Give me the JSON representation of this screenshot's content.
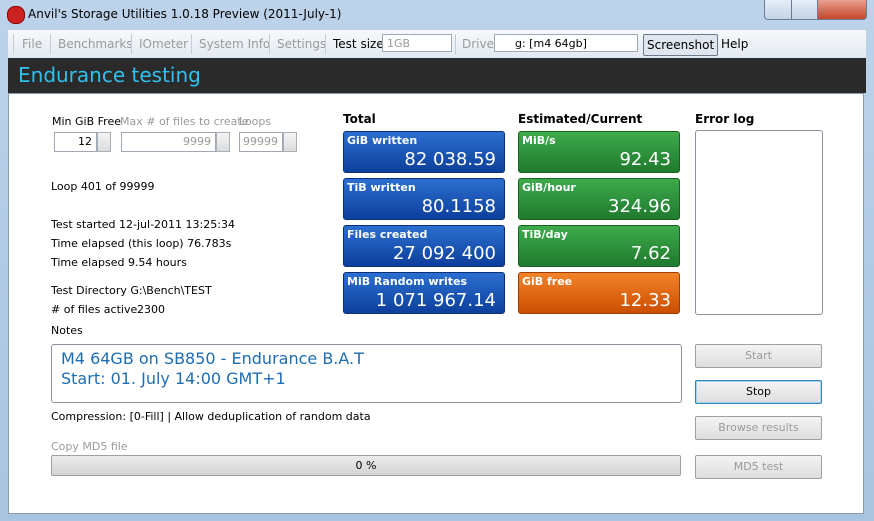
{
  "window": {
    "title": "Anvil's Storage Utilities 1.0.18 Preview (2011-July-1)"
  },
  "menu": {
    "items": [
      "File",
      "Benchmarks",
      "IOmeter",
      "System Info",
      "Settings"
    ],
    "test_size_label": "Test size",
    "test_size": "1GB",
    "drive_label": "Drive",
    "drive": "g: [m4 64gb]",
    "screenshot": "Screenshot",
    "help": "Help"
  },
  "header": {
    "title": "Endurance testing"
  },
  "settings": [
    {
      "label": "Min GiB Free",
      "value": "12"
    },
    {
      "label": "Max # of files to create",
      "value": "9999"
    },
    {
      "label": "Loops",
      "value": "99999"
    }
  ],
  "status": {
    "loop": "Loop 401 of 99999",
    "test_started": "Test started 12-jul-2011 13:25:34",
    "elapsed_loop": "Time elapsed (this loop) 76.783s",
    "elapsed": "Time elapsed 9.54 hours",
    "directory": "Test Directory G:\\Bench\\TEST",
    "files_active_label": "# of files active",
    "files_active": "2300"
  },
  "total": {
    "title": "Total",
    "tiles": [
      {
        "label": "GiB written",
        "value": "82 038.59"
      },
      {
        "label": "TiB written",
        "value": "80.1158"
      },
      {
        "label": "Files created",
        "value": "27 092 400"
      },
      {
        "label": "MiB Random writes",
        "value": "1 071 967.14"
      }
    ]
  },
  "estimated": {
    "title": "Estimated/Current",
    "tiles": [
      {
        "label": "MiB/s",
        "value": "92.43"
      },
      {
        "label": "GiB/hour",
        "value": "324.96"
      },
      {
        "label": "TiB/day",
        "value": "7.62"
      },
      {
        "label": "GiB free",
        "value": "12.33"
      }
    ]
  },
  "error_log": {
    "title": "Error log"
  },
  "notes": {
    "label": "Notes",
    "lines": [
      "M4 64GB on SB850 - Endurance B.A.T",
      "Start: 01. July 14:00 GMT+1"
    ]
  },
  "compression": "Compression: [0-Fill] | Allow deduplication of random data",
  "copy_md5": {
    "label": "Copy MD5 file",
    "progress": "0 %"
  },
  "buttons": [
    "Start",
    "Stop",
    "Browse results",
    "MD5 test"
  ]
}
